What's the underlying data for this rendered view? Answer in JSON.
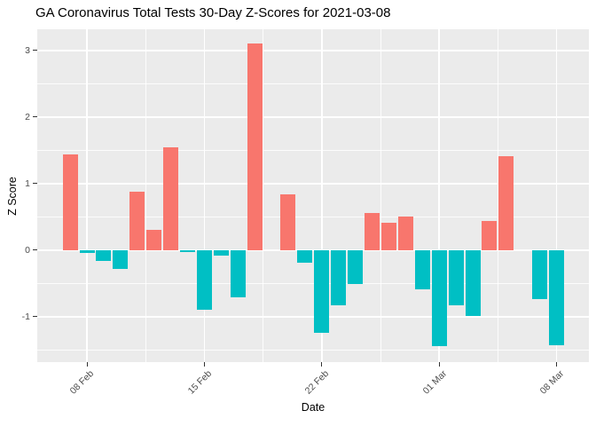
{
  "title": "GA Coronavirus Total Tests 30-Day Z-Scores for 2021-03-08",
  "chart_data": {
    "type": "bar",
    "title": "GA Coronavirus Total Tests 30-Day Z-Scores for 2021-03-08",
    "xlabel": "Date",
    "ylabel": "Z Score",
    "x": [
      "2021-02-07",
      "2021-02-08",
      "2021-02-09",
      "2021-02-10",
      "2021-02-11",
      "2021-02-12",
      "2021-02-13",
      "2021-02-14",
      "2021-02-15",
      "2021-02-16",
      "2021-02-17",
      "2021-02-18",
      "2021-02-19",
      "2021-02-20",
      "2021-02-21",
      "2021-02-22",
      "2021-02-23",
      "2021-02-24",
      "2021-02-25",
      "2021-02-26",
      "2021-02-27",
      "2021-02-28",
      "2021-03-01",
      "2021-03-02",
      "2021-03-03",
      "2021-03-04",
      "2021-03-05",
      "2021-03-06",
      "2021-03-07",
      "2021-03-08"
    ],
    "values": [
      1.43,
      -0.04,
      -0.16,
      -0.28,
      0.88,
      0.3,
      1.54,
      -0.03,
      -0.9,
      -0.09,
      -0.71,
      3.1,
      0.0,
      0.84,
      -0.19,
      -1.24,
      -0.83,
      -0.51,
      0.56,
      0.41,
      0.5,
      -0.59,
      -1.45,
      -0.83,
      -0.99,
      0.44,
      1.41,
      0.0,
      -0.74,
      -1.43
    ],
    "x_tick_labels": [
      "08 Feb",
      "15 Feb",
      "22 Feb",
      "01 Mar",
      "08 Mar"
    ],
    "x_tick_indices": [
      1,
      8,
      15,
      22,
      29
    ],
    "y_tick_labels": [
      "3",
      "2",
      "1",
      "0",
      "-1"
    ],
    "y_ticks": [
      3,
      2,
      1,
      0,
      -1
    ],
    "y_minor_ticks": [
      2.5,
      1.5,
      0.5,
      -0.5,
      -1.5
    ],
    "ylim": [
      -1.68,
      3.32
    ],
    "grid": "on",
    "legend": "none",
    "colors": {
      "positive": "#F8766D",
      "negative": "#00BFC4",
      "panel_background": "#EBEBEB",
      "grid": "#FFFFFF",
      "tick_label": "#4D4D4D",
      "axis_title": "#000000"
    }
  }
}
